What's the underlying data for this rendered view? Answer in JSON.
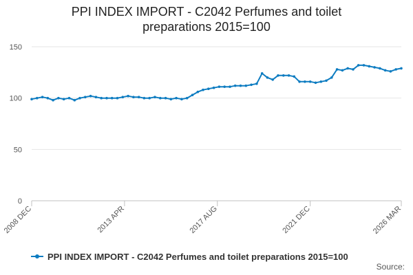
{
  "title_line1": "PPI INDEX IMPORT - C2042 Perfumes and toilet",
  "title_line2": "preparations 2015=100",
  "source_label": "Source:",
  "colors": {
    "series": "#0d7cc1",
    "grid": "#e6e6e6",
    "axis": "#c0c0c0",
    "text": "#555555"
  },
  "chart_data": {
    "type": "line",
    "title": "PPI INDEX IMPORT - C2042 Perfumes and toilet preparations 2015=100",
    "xlabel": "",
    "ylabel": "",
    "ylim": [
      0,
      150
    ],
    "yticks": [
      0,
      50,
      100,
      150
    ],
    "xticks": [
      "2008 DEC",
      "2013 APR",
      "2017 AUG",
      "2021 DEC",
      "2026 MAR"
    ],
    "x_range": [
      "2008 DEC",
      "2026 MAR"
    ],
    "grid": "horizontal",
    "legend": "bottom",
    "series": [
      {
        "name": "PPI INDEX IMPORT - C2042 Perfumes and toilet preparations 2015=100",
        "x": [
          "2008-12",
          "2009-03",
          "2009-06",
          "2009-09",
          "2009-12",
          "2010-03",
          "2010-06",
          "2010-09",
          "2010-12",
          "2011-03",
          "2011-06",
          "2011-09",
          "2011-12",
          "2012-03",
          "2012-06",
          "2012-09",
          "2012-12",
          "2013-03",
          "2013-06",
          "2013-09",
          "2013-12",
          "2014-03",
          "2014-06",
          "2014-09",
          "2014-12",
          "2015-03",
          "2015-06",
          "2015-09",
          "2015-12",
          "2016-03",
          "2016-06",
          "2016-09",
          "2016-12",
          "2017-03",
          "2017-06",
          "2017-09",
          "2017-12",
          "2018-03",
          "2018-06",
          "2018-09",
          "2018-12",
          "2019-03",
          "2019-06",
          "2019-09",
          "2019-12",
          "2020-03",
          "2020-06",
          "2020-09",
          "2020-12",
          "2021-03",
          "2021-06",
          "2021-09",
          "2021-12",
          "2022-03",
          "2022-06",
          "2022-09",
          "2022-12",
          "2023-03",
          "2023-06",
          "2023-09",
          "2023-12",
          "2024-03",
          "2024-06",
          "2024-09",
          "2024-12",
          "2025-03",
          "2025-06",
          "2025-09",
          "2025-12",
          "2026-03"
        ],
        "values": [
          99,
          100,
          101,
          100,
          98,
          100,
          99,
          100,
          98,
          100,
          101,
          102,
          101,
          100,
          100,
          100,
          100,
          101,
          102,
          101,
          101,
          100,
          100,
          101,
          100,
          100,
          99,
          100,
          99,
          100,
          103,
          106,
          108,
          109,
          110,
          111,
          111,
          111,
          112,
          112,
          112,
          113,
          114,
          124,
          120,
          118,
          122,
          122,
          122,
          121,
          116,
          116,
          116,
          115,
          116,
          117,
          120,
          128,
          127,
          129,
          128,
          132,
          132,
          131,
          130,
          129,
          127,
          126,
          128,
          129
        ]
      }
    ]
  }
}
